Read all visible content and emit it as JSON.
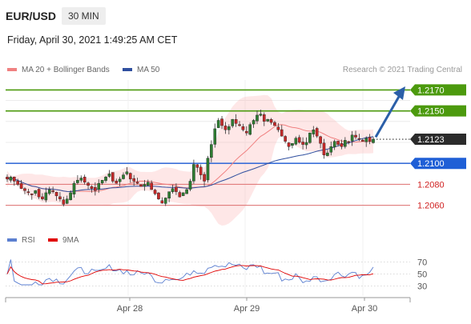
{
  "header": {
    "symbol": "EUR/USD",
    "timeframe": "30 MIN",
    "datetime": "Friday, April 30, 2021 1:49:25 AM CET"
  },
  "legend": {
    "ma20_label": "MA 20 + Bollinger Bands",
    "ma20_color": "#f08080",
    "ma50_label": "MA 50",
    "ma50_color": "#2f4f9f",
    "credit": "Research © 2021 Trading Central"
  },
  "rsi_legend": {
    "rsi_label": "RSI",
    "rsi_color": "#5b7fd0",
    "ma_label": "9MA",
    "ma_color": "#e00000"
  },
  "chart_data": [
    {
      "type": "candlestick",
      "ylim": [
        1.2046,
        1.2181
      ],
      "x_ticks": [
        "Apr 28",
        "Apr 29",
        "Apr 30"
      ],
      "levels": [
        {
          "value": "1.2170",
          "kind": "resistance",
          "color": "#4c9a0e"
        },
        {
          "value": "1.2150",
          "kind": "resistance",
          "color": "#4c9a0e"
        },
        {
          "value": "1.2123",
          "kind": "last-price",
          "color": "#333333"
        },
        {
          "value": "1.2100",
          "kind": "pivot",
          "color": "#3a6fd8"
        },
        {
          "value": "1.2080",
          "kind": "support",
          "color": "#e04040"
        },
        {
          "value": "1.2060",
          "kind": "support",
          "color": "#e04040"
        }
      ],
      "close": [
        1.2085,
        1.2087,
        1.2083,
        1.208,
        1.2076,
        1.2074,
        1.2072,
        1.207,
        1.2074,
        1.2068,
        1.2066,
        1.2072,
        1.2075,
        1.2073,
        1.2069,
        1.2066,
        1.2061,
        1.2066,
        1.2072,
        1.2081,
        1.2084,
        1.2086,
        1.2082,
        1.2079,
        1.2076,
        1.2074,
        1.2081,
        1.2084,
        1.2087,
        1.209,
        1.2083,
        1.2081,
        1.2085,
        1.2089,
        1.2092,
        1.2085,
        1.2083,
        1.2081,
        1.2078,
        1.208,
        1.2082,
        1.2075,
        1.2071,
        1.2066,
        1.2062,
        1.2067,
        1.2073,
        1.2076,
        1.2073,
        1.2068,
        1.2072,
        1.2075,
        1.2083,
        1.2099,
        1.2096,
        1.2089,
        1.2083,
        1.2105,
        1.2118,
        1.2133,
        1.2141,
        1.2136,
        1.2132,
        1.2135,
        1.2142,
        1.2138,
        1.2136,
        1.2132,
        1.2129,
        1.2137,
        1.2141,
        1.2146,
        1.2147,
        1.214,
        1.2142,
        1.2139,
        1.2136,
        1.2132,
        1.2126,
        1.2121,
        1.2116,
        1.2119,
        1.2124,
        1.212,
        1.2118,
        1.212,
        1.2129,
        1.2132,
        1.2126,
        1.2119,
        1.2108,
        1.211,
        1.2116,
        1.2121,
        1.2118,
        1.2116,
        1.2122,
        1.212,
        1.2127,
        1.2125,
        1.2123,
        1.2121,
        1.2124,
        1.2121,
        1.2123
      ]
    },
    {
      "type": "line",
      "series": [
        {
          "name": "RSI"
        },
        {
          "name": "9MA"
        }
      ],
      "y_ticks": [
        "70",
        "50",
        "30"
      ],
      "ylim": [
        20,
        80
      ]
    }
  ]
}
